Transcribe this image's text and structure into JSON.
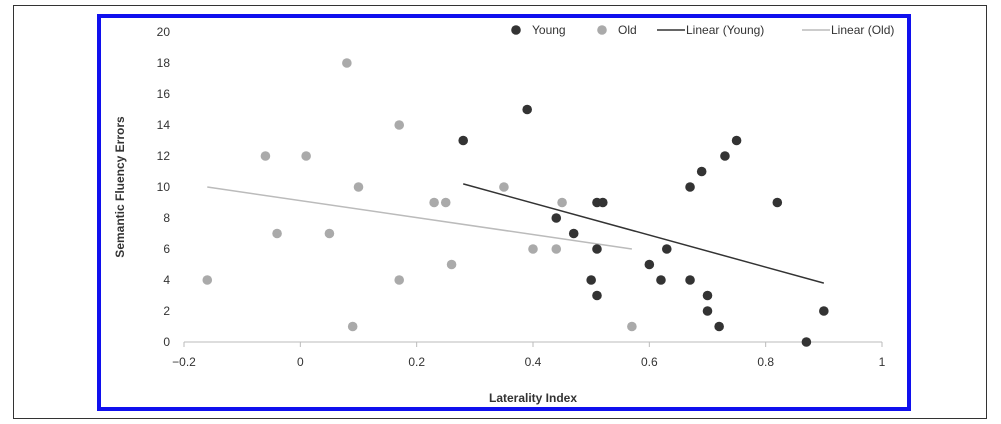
{
  "chart_data": {
    "type": "scatter",
    "title": "",
    "xlabel": "Laterality Index",
    "ylabel": "Semantic Fluency Errors",
    "xlim": [
      -0.2,
      1
    ],
    "ylim": [
      0,
      20
    ],
    "x_ticks": [
      "−0.2",
      "0",
      "0.2",
      "0.4",
      "0.6",
      "0.8",
      "1"
    ],
    "x_tick_values": [
      -0.2,
      0,
      0.2,
      0.4,
      0.6,
      0.8,
      1
    ],
    "y_ticks": [
      "0",
      "2",
      "4",
      "6",
      "8",
      "10",
      "12",
      "14",
      "16",
      "18",
      "20"
    ],
    "y_tick_values": [
      0,
      2,
      4,
      6,
      8,
      10,
      12,
      14,
      16,
      18,
      20
    ],
    "grid": false,
    "legend_position": "top",
    "series": [
      {
        "name": "Young",
        "kind": "points",
        "color": "#333333",
        "points": [
          [
            0.28,
            13
          ],
          [
            0.39,
            15
          ],
          [
            0.44,
            8
          ],
          [
            0.47,
            7
          ],
          [
            0.5,
            4
          ],
          [
            0.51,
            9
          ],
          [
            0.51,
            6
          ],
          [
            0.51,
            3
          ],
          [
            0.52,
            9
          ],
          [
            0.6,
            5
          ],
          [
            0.62,
            4
          ],
          [
            0.63,
            6
          ],
          [
            0.67,
            10
          ],
          [
            0.67,
            4
          ],
          [
            0.69,
            11
          ],
          [
            0.7,
            3
          ],
          [
            0.7,
            2
          ],
          [
            0.72,
            1
          ],
          [
            0.73,
            12
          ],
          [
            0.75,
            13
          ],
          [
            0.82,
            9
          ],
          [
            0.87,
            0
          ],
          [
            0.9,
            2
          ]
        ]
      },
      {
        "name": "Old",
        "kind": "points",
        "color": "#aaaaaa",
        "points": [
          [
            -0.16,
            4
          ],
          [
            -0.06,
            12
          ],
          [
            -0.04,
            7
          ],
          [
            0.01,
            12
          ],
          [
            0.05,
            7
          ],
          [
            0.08,
            18
          ],
          [
            0.09,
            1
          ],
          [
            0.1,
            10
          ],
          [
            0.17,
            14
          ],
          [
            0.17,
            4
          ],
          [
            0.23,
            9
          ],
          [
            0.25,
            9
          ],
          [
            0.26,
            5
          ],
          [
            0.35,
            10
          ],
          [
            0.4,
            6
          ],
          [
            0.44,
            6
          ],
          [
            0.45,
            9
          ],
          [
            0.57,
            1
          ]
        ]
      },
      {
        "name": "Linear  (Young)",
        "kind": "line",
        "color": "#333333",
        "points": [
          [
            0.28,
            10.2
          ],
          [
            0.9,
            3.8
          ]
        ]
      },
      {
        "name": "Linear  (Old)",
        "kind": "line",
        "color": "#bbbbbb",
        "points": [
          [
            -0.16,
            10
          ],
          [
            0.57,
            6
          ]
        ]
      }
    ]
  }
}
